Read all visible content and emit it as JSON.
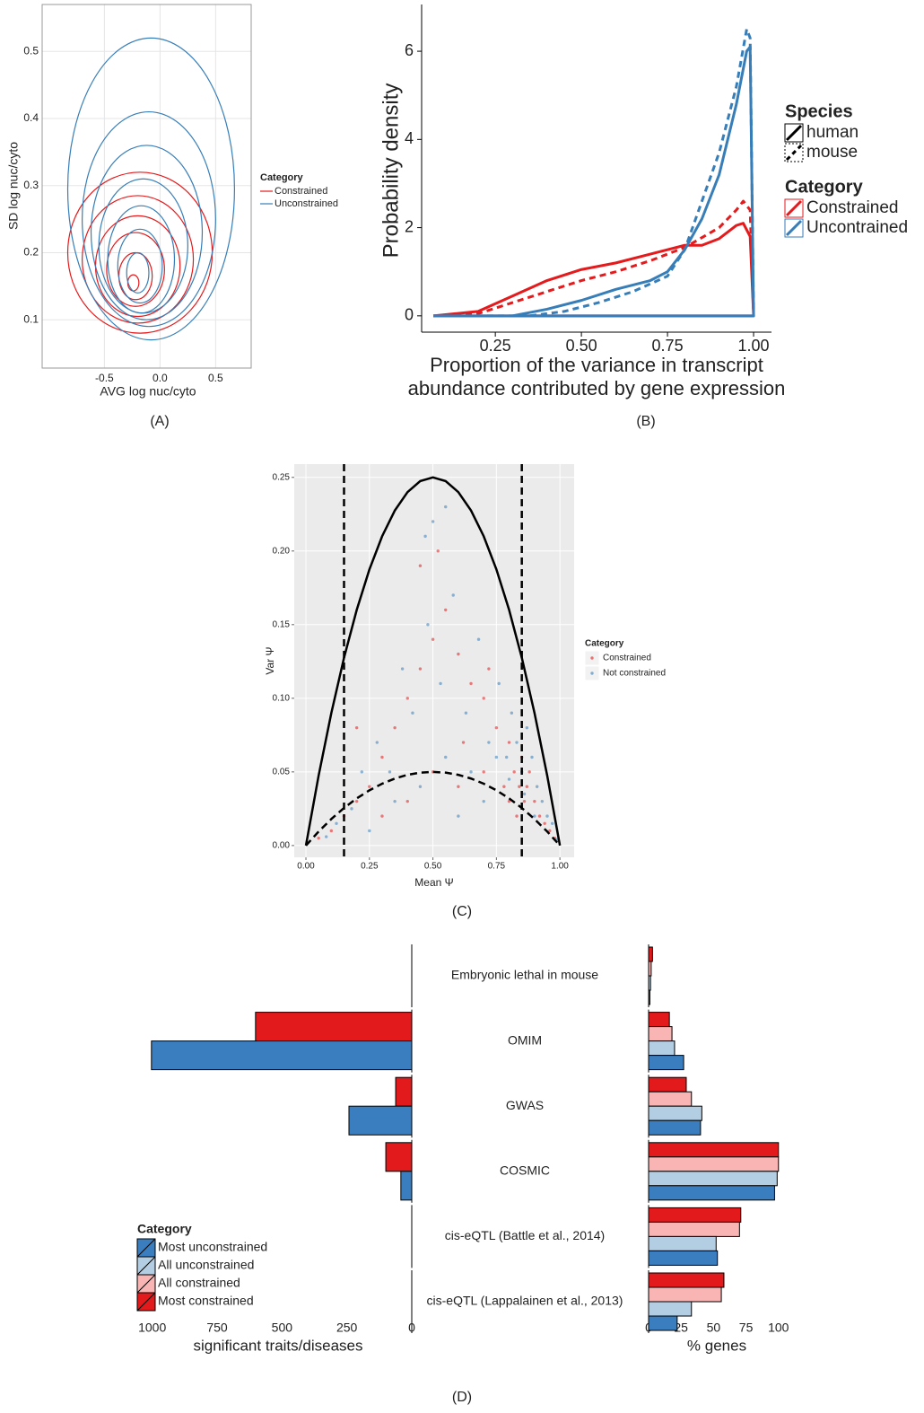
{
  "chart_data": [
    {
      "type": "contour",
      "caption": "(A)",
      "xlabel": "AVG log nuc/cyto",
      "ylabel": "SD log nuc/cyto",
      "xlim": [
        -1.06,
        0.82
      ],
      "ylim": [
        0.028,
        0.57
      ],
      "xticks": [
        -0.5,
        {
          "value": 0,
          "label": "0.0"
        },
        0.5
      ],
      "yticks": [
        0.1,
        0.2,
        0.3,
        0.4,
        0.5
      ],
      "grid": true,
      "legend_title": "Category",
      "series": [
        {
          "name": "Constrained",
          "color": "#e41a1c",
          "contours": [
            {
              "cx": -0.18,
              "cy": 0.2,
              "rx": 0.65,
              "ry": 0.12
            },
            {
              "cx": -0.2,
              "cy": 0.19,
              "rx": 0.5,
              "ry": 0.095
            },
            {
              "cx": -0.2,
              "cy": 0.18,
              "rx": 0.38,
              "ry": 0.075
            },
            {
              "cx": -0.22,
              "cy": 0.175,
              "rx": 0.26,
              "ry": 0.055
            },
            {
              "cx": -0.22,
              "cy": 0.165,
              "rx": 0.15,
              "ry": 0.035
            },
            {
              "cx": -0.24,
              "cy": 0.155,
              "rx": 0.05,
              "ry": 0.012
            }
          ]
        },
        {
          "name": "Unconstrained",
          "color": "#377eb8",
          "contours": [
            {
              "cx": -0.08,
              "cy": 0.295,
              "rx": 0.75,
              "ry": 0.225
            },
            {
              "cx": -0.1,
              "cy": 0.25,
              "rx": 0.6,
              "ry": 0.16
            },
            {
              "cx": -0.12,
              "cy": 0.23,
              "rx": 0.5,
              "ry": 0.13
            },
            {
              "cx": -0.15,
              "cy": 0.21,
              "rx": 0.4,
              "ry": 0.1
            },
            {
              "cx": -0.17,
              "cy": 0.19,
              "rx": 0.3,
              "ry": 0.08
            },
            {
              "cx": -0.18,
              "cy": 0.18,
              "rx": 0.2,
              "ry": 0.055
            },
            {
              "cx": -0.2,
              "cy": 0.17,
              "rx": 0.1,
              "ry": 0.03
            }
          ]
        }
      ]
    },
    {
      "type": "line",
      "caption": "(B)",
      "ylabel": "Probability density",
      "xlabel": [
        "Proportion of the variance in transcript",
        "abundance contributed by gene expression"
      ],
      "xlim": [
        0.036,
        1.052
      ],
      "ylim": [
        -0.37,
        7.06
      ],
      "xticks": [
        0.25,
        {
          "value": 0.5,
          "label": "0.50"
        },
        0.75,
        {
          "value": 1,
          "label": "1.00"
        }
      ],
      "yticks": [
        0,
        2,
        4,
        6
      ],
      "legends": [
        {
          "title": "Species",
          "entries": [
            {
              "label": "human",
              "style": "solid"
            },
            {
              "label": "mouse",
              "style": "dashed"
            }
          ]
        },
        {
          "title": "Category",
          "entries": [
            {
              "label": "Constrained",
              "color": "#e41a1c"
            },
            {
              "label": "Uncontrained",
              "color": "#377eb8"
            }
          ]
        }
      ],
      "series": [
        {
          "color": "#e41a1c",
          "dash": false,
          "x": [
            0.07,
            0.2,
            0.3,
            0.4,
            0.5,
            0.6,
            0.7,
            0.8,
            0.85,
            0.9,
            0.95,
            0.97,
            0.99,
            1.0,
            0.07
          ],
          "y": [
            0,
            0.1,
            0.45,
            0.8,
            1.05,
            1.2,
            1.4,
            1.6,
            1.6,
            1.75,
            2.05,
            2.1,
            1.8,
            0,
            0
          ]
        },
        {
          "color": "#e41a1c",
          "dash": true,
          "x": [
            0.07,
            0.2,
            0.3,
            0.4,
            0.5,
            0.6,
            0.7,
            0.8,
            0.9,
            0.95,
            0.97,
            0.99,
            1.0
          ],
          "y": [
            0,
            0.05,
            0.3,
            0.55,
            0.8,
            1.0,
            1.25,
            1.55,
            2.0,
            2.4,
            2.6,
            2.4,
            0
          ]
        },
        {
          "color": "#377eb8",
          "dash": false,
          "x": [
            0.07,
            0.3,
            0.4,
            0.5,
            0.6,
            0.7,
            0.75,
            0.8,
            0.85,
            0.9,
            0.95,
            0.98,
            0.99,
            1.0,
            0.07
          ],
          "y": [
            0,
            0,
            0.15,
            0.35,
            0.6,
            0.8,
            1.0,
            1.5,
            2.2,
            3.2,
            4.8,
            6.0,
            6.1,
            0,
            0
          ]
        },
        {
          "color": "#377eb8",
          "dash": true,
          "x": [
            0.07,
            0.35,
            0.45,
            0.55,
            0.65,
            0.75,
            0.8,
            0.85,
            0.9,
            0.95,
            0.98,
            0.99,
            1.0
          ],
          "y": [
            0,
            0,
            0.1,
            0.3,
            0.55,
            0.9,
            1.5,
            2.6,
            3.7,
            5.2,
            6.5,
            6.3,
            0
          ]
        }
      ]
    },
    {
      "type": "scatter",
      "caption": "(C)",
      "xlabel": "Mean Ψ",
      "ylabel": "Var Ψ",
      "xlim": [
        -0.046,
        1.056
      ],
      "ylim": [
        -0.008,
        0.259
      ],
      "xticks": [
        {
          "value": 0,
          "label": "0.00"
        },
        0.25,
        {
          "value": 0.5,
          "label": "0.50"
        },
        0.75,
        {
          "value": 1,
          "label": "1.00"
        }
      ],
      "yticks": [
        {
          "value": 0,
          "label": "0.00"
        },
        0.05,
        {
          "value": 0.1,
          "label": "0.10"
        },
        0.15,
        {
          "value": 0.2,
          "label": "0.20"
        },
        0.25
      ],
      "grid": true,
      "legend_title": "Category",
      "series": [
        {
          "name": "Constrained",
          "color": "#e41a1c",
          "x": [
            0.05,
            0.1,
            0.15,
            0.2,
            0.25,
            0.3,
            0.35,
            0.4,
            0.45,
            0.5,
            0.55,
            0.6,
            0.65,
            0.7,
            0.75,
            0.8,
            0.82,
            0.84,
            0.85,
            0.86,
            0.88,
            0.9,
            0.92,
            0.94,
            0.96,
            0.98,
            0.3,
            0.4,
            0.5,
            0.6,
            0.7,
            0.78,
            0.8,
            0.83,
            0.87,
            0.45,
            0.52,
            0.62,
            0.72,
            0.2
          ],
          "y": [
            0.005,
            0.01,
            0.02,
            0.03,
            0.04,
            0.06,
            0.08,
            0.1,
            0.12,
            0.14,
            0.16,
            0.13,
            0.11,
            0.1,
            0.08,
            0.07,
            0.05,
            0.04,
            0.06,
            0.03,
            0.05,
            0.03,
            0.02,
            0.015,
            0.01,
            0.005,
            0.02,
            0.03,
            0.05,
            0.04,
            0.05,
            0.04,
            0.03,
            0.02,
            0.04,
            0.19,
            0.2,
            0.07,
            0.12,
            0.08
          ]
        },
        {
          "name": "Not constrained",
          "color": "#377eb8",
          "x": [
            0.08,
            0.12,
            0.18,
            0.22,
            0.28,
            0.33,
            0.38,
            0.42,
            0.48,
            0.5,
            0.53,
            0.58,
            0.63,
            0.68,
            0.72,
            0.76,
            0.79,
            0.81,
            0.83,
            0.85,
            0.87,
            0.89,
            0.91,
            0.93,
            0.95,
            0.97,
            0.99,
            0.35,
            0.45,
            0.55,
            0.65,
            0.75,
            0.8,
            0.86,
            0.9,
            0.6,
            0.25,
            0.47,
            0.55,
            0.7
          ],
          "y": [
            0.006,
            0.015,
            0.025,
            0.05,
            0.07,
            0.05,
            0.12,
            0.09,
            0.15,
            0.22,
            0.11,
            0.17,
            0.09,
            0.14,
            0.07,
            0.11,
            0.06,
            0.09,
            0.07,
            0.05,
            0.08,
            0.06,
            0.04,
            0.03,
            0.02,
            0.015,
            0.004,
            0.03,
            0.04,
            0.06,
            0.05,
            0.06,
            0.045,
            0.035,
            0.02,
            0.02,
            0.01,
            0.21,
            0.23,
            0.03
          ]
        }
      ],
      "lines": [
        {
          "dash": false,
          "x": [
            0,
            0.05,
            0.1,
            0.15,
            0.2,
            0.25,
            0.3,
            0.35,
            0.4,
            0.45,
            0.5,
            0.55,
            0.6,
            0.65,
            0.7,
            0.75,
            0.8,
            0.85,
            0.9,
            0.95,
            1
          ],
          "y": [
            0,
            0.0475,
            0.09,
            0.1275,
            0.16,
            0.1875,
            0.21,
            0.2275,
            0.24,
            0.2475,
            0.25,
            0.2475,
            0.24,
            0.2275,
            0.21,
            0.1875,
            0.16,
            0.1275,
            0.09,
            0.0475,
            0
          ]
        },
        {
          "dash": true,
          "x": [
            0,
            0.05,
            0.1,
            0.15,
            0.2,
            0.25,
            0.3,
            0.35,
            0.4,
            0.45,
            0.5,
            0.55,
            0.6,
            0.65,
            0.7,
            0.75,
            0.8,
            0.85,
            0.9,
            0.95,
            1
          ],
          "y": [
            0,
            0.0095,
            0.018,
            0.0255,
            0.032,
            0.0375,
            0.042,
            0.0455,
            0.048,
            0.0495,
            0.05,
            0.0495,
            0.048,
            0.0455,
            0.042,
            0.0375,
            0.032,
            0.0255,
            0.018,
            0.0095,
            0
          ]
        }
      ],
      "vlines": [
        0.15,
        0.85
      ]
    },
    {
      "type": "bar",
      "orientation": "horizontal",
      "caption": "(D)",
      "legend_title": "Category",
      "categories": [
        "Embryonic lethal in mouse",
        "OMIM",
        "GWAS",
        "COSMIC",
        "cis-eQTL (Battle et al., 2014)",
        "cis-eQTL (Lappalainen et al., 2013)"
      ],
      "series": [
        {
          "name": "Most unconstrained",
          "color": "#3a7ebf"
        },
        {
          "name": "All unconstrained",
          "color": "#b3cde3"
        },
        {
          "name": "All constrained",
          "color": "#f9b4b4"
        },
        {
          "name": "Most constrained",
          "color": "#e31a1c"
        }
      ],
      "panels": [
        {
          "xlabel": "significant traits/diseases",
          "xlim": [
            0,
            1030
          ],
          "reversed": true,
          "xticks": [
            1000,
            750,
            500,
            250,
            0
          ],
          "values": [
            [
              null,
              1003,
              242,
              42,
              null,
              null
            ],
            [
              null,
              null,
              null,
              null,
              null,
              null
            ],
            [
              null,
              null,
              null,
              null,
              null,
              null
            ],
            [
              null,
              602,
              62,
              100,
              null,
              null
            ]
          ]
        },
        {
          "xlabel": "% genes",
          "xlim": [
            0,
            105
          ],
          "reversed": false,
          "xticks": [
            0,
            25,
            50,
            75,
            100
          ],
          "values": [
            [
              1,
              27,
              40,
              97,
              53,
              22
            ],
            [
              1.5,
              20,
              41,
              99,
              52,
              33
            ],
            [
              2,
              18,
              33,
              100,
              70,
              56
            ],
            [
              3,
              16,
              29,
              100,
              71,
              58
            ]
          ]
        }
      ]
    }
  ]
}
